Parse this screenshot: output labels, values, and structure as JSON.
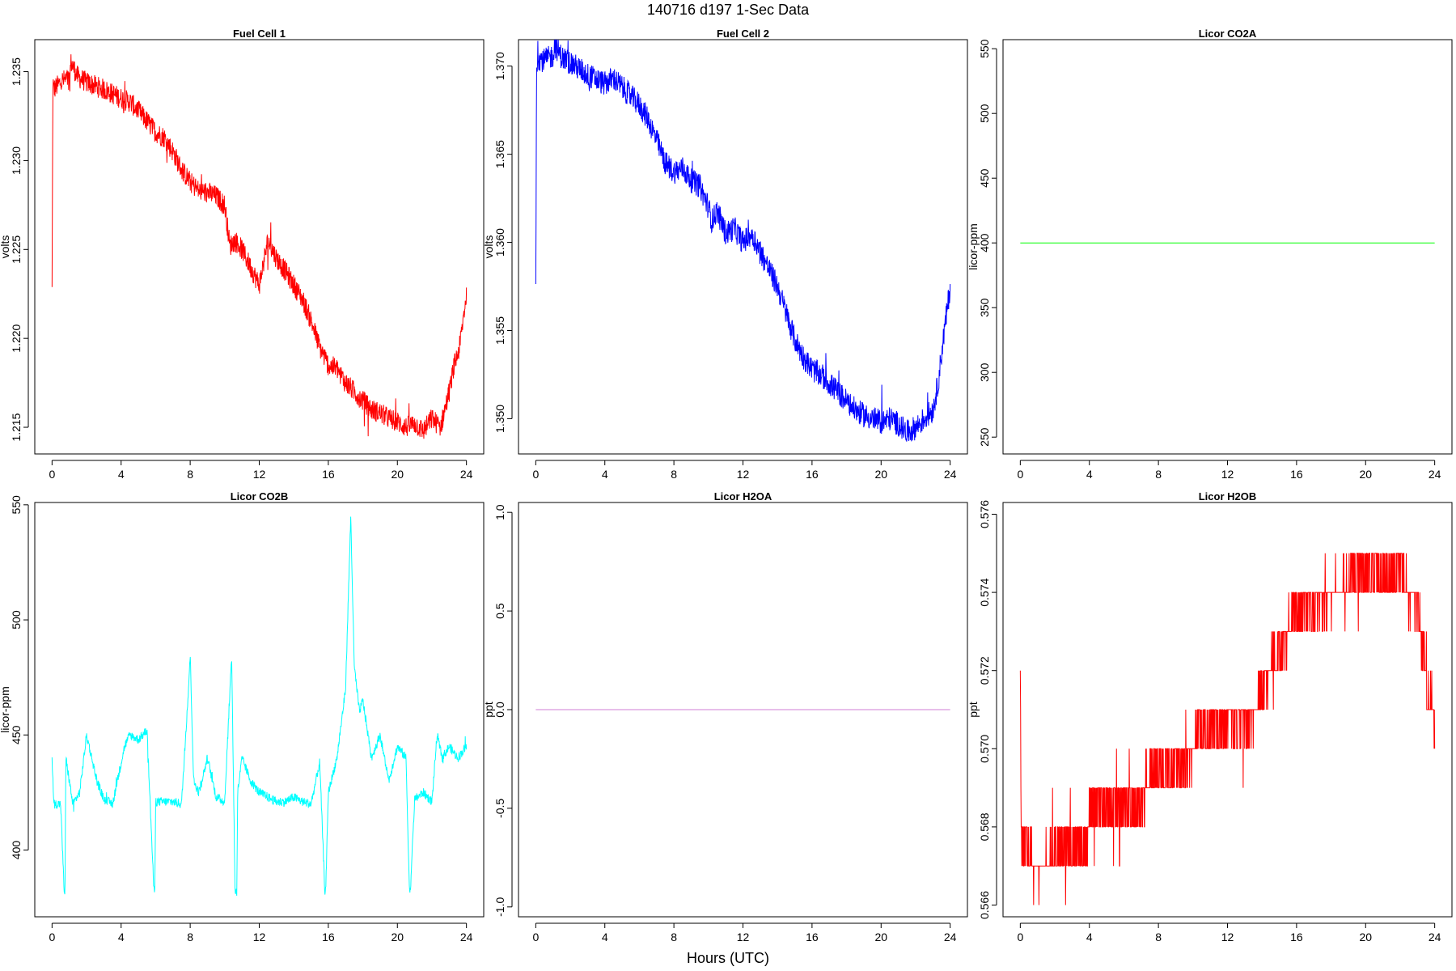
{
  "figure": {
    "title": "140716   d197   1-Sec Data",
    "xlabel": "Hours (UTC)"
  },
  "chart_data": [
    {
      "type": "line",
      "title": "Fuel Cell 1",
      "ylabel": "volts",
      "color": "#ff0000",
      "xlim": [
        -1,
        25
      ],
      "ylim": [
        1.2135,
        1.2368
      ],
      "xticks": [
        0,
        4,
        8,
        12,
        16,
        20,
        24
      ],
      "yticks": [
        "1.215",
        "1.220",
        "1.225",
        "1.230",
        "1.235"
      ],
      "noise": 0.0006,
      "x": [
        0,
        0.05,
        0.1,
        0.3,
        0.6,
        1.0,
        1.1,
        1.5,
        2,
        3,
        4,
        4.5,
        5,
        5.5,
        6,
        6.5,
        7,
        7.5,
        8,
        8.5,
        9,
        9.5,
        10,
        10.3,
        10.6,
        11,
        11.5,
        12,
        12.5,
        13,
        13.5,
        14,
        14.5,
        15,
        15.5,
        16,
        16.5,
        17,
        17.5,
        18,
        18.5,
        19,
        19.5,
        20,
        20.5,
        21,
        21.5,
        22,
        22.5,
        23,
        23.3,
        23.6,
        24
      ],
      "values": [
        1.2227,
        1.2345,
        1.234,
        1.2342,
        1.2345,
        1.2346,
        1.2355,
        1.2347,
        1.2344,
        1.234,
        1.2335,
        1.2333,
        1.2328,
        1.2322,
        1.2316,
        1.2313,
        1.2305,
        1.2295,
        1.2288,
        1.2283,
        1.2282,
        1.228,
        1.2275,
        1.2252,
        1.2255,
        1.225,
        1.224,
        1.223,
        1.2255,
        1.2245,
        1.2238,
        1.223,
        1.2222,
        1.221,
        1.2195,
        1.2185,
        1.2183,
        1.2175,
        1.217,
        1.2165,
        1.216,
        1.2158,
        1.2155,
        1.2153,
        1.215,
        1.2152,
        1.2148,
        1.2155,
        1.215,
        1.217,
        1.2185,
        1.2195,
        1.2225
      ]
    },
    {
      "type": "line",
      "title": "Fuel Cell 2",
      "ylabel": "volts",
      "color": "#0000ff",
      "xlim": [
        -1,
        25
      ],
      "ylim": [
        1.348,
        1.3715
      ],
      "xticks": [
        0,
        4,
        8,
        12,
        16,
        20,
        24
      ],
      "yticks": [
        "1.350",
        "1.355",
        "1.360",
        "1.365",
        "1.370"
      ],
      "noise": 0.0007,
      "x": [
        0,
        0.05,
        0.1,
        0.5,
        1.0,
        1.1,
        1.5,
        2,
        3,
        4,
        4.5,
        5,
        5.5,
        6,
        6.5,
        7,
        7.5,
        8,
        8.5,
        9,
        9.5,
        10,
        10.2,
        10.5,
        11,
        11.5,
        12,
        12.5,
        13,
        13.5,
        14,
        14.5,
        15,
        15.5,
        16,
        16.5,
        17,
        17.5,
        18,
        18.5,
        19,
        19.5,
        20,
        20.5,
        21,
        21.5,
        22,
        22.5,
        23,
        23.3,
        23.6,
        24
      ],
      "values": [
        1.3575,
        1.37,
        1.3705,
        1.3703,
        1.3706,
        1.3712,
        1.3705,
        1.3702,
        1.3695,
        1.369,
        1.3693,
        1.3688,
        1.3683,
        1.3678,
        1.367,
        1.3658,
        1.3645,
        1.364,
        1.3642,
        1.3635,
        1.3632,
        1.362,
        1.3612,
        1.3618,
        1.3605,
        1.3608,
        1.36,
        1.3605,
        1.3595,
        1.3585,
        1.3575,
        1.356,
        1.3545,
        1.3535,
        1.3528,
        1.3525,
        1.352,
        1.3515,
        1.351,
        1.3505,
        1.3502,
        1.35,
        1.3498,
        1.35,
        1.3497,
        1.3492,
        1.3495,
        1.35,
        1.3505,
        1.352,
        1.3545,
        1.3575
      ]
    },
    {
      "type": "line",
      "title": "Licor CO2A",
      "ylabel": "licor-ppm",
      "color": "#00ff00",
      "xlim": [
        -1,
        25
      ],
      "ylim": [
        237,
        557
      ],
      "xticks": [
        0,
        4,
        8,
        12,
        16,
        20,
        24
      ],
      "yticks": [
        "250",
        "300",
        "350",
        "400",
        "450",
        "500",
        "550"
      ],
      "noise": 0,
      "x": [
        0,
        24
      ],
      "values": [
        400,
        400
      ]
    },
    {
      "type": "line",
      "title": "Licor CO2B",
      "ylabel": "licor-ppm",
      "color": "#00ffff",
      "xlim": [
        -1,
        25
      ],
      "ylim": [
        371,
        551
      ],
      "xticks": [
        0,
        4,
        8,
        12,
        16,
        20,
        24
      ],
      "yticks": [
        "400",
        "450",
        "500",
        "550"
      ],
      "noise": 2,
      "x": [
        0,
        0.1,
        0.5,
        0.7,
        0.75,
        0.8,
        1.2,
        1.6,
        2.0,
        2.3,
        2.6,
        3.0,
        3.5,
        4.2,
        4.5,
        5.0,
        5.5,
        5.9,
        5.95,
        6.0,
        6.5,
        7.0,
        7.5,
        7.9,
        8.0,
        8.2,
        8.5,
        9.0,
        9.5,
        10.0,
        10.4,
        10.6,
        10.7,
        10.75,
        11.0,
        11.5,
        12.0,
        12.5,
        13.0,
        13.5,
        14.0,
        14.5,
        15.0,
        15.5,
        15.8,
        15.85,
        16.0,
        16.5,
        17.0,
        17.3,
        17.5,
        17.8,
        18.0,
        18.5,
        19.0,
        19.5,
        20.0,
        20.5,
        20.7,
        20.75,
        21.0,
        21.5,
        22.0,
        22.3,
        22.6,
        23.0,
        23.5,
        24.0
      ],
      "values": [
        440,
        420,
        420,
        382,
        382,
        440,
        420,
        425,
        450,
        440,
        430,
        422,
        420,
        445,
        450,
        448,
        452,
        382,
        382,
        421,
        421,
        421,
        420,
        470,
        485,
        430,
        425,
        440,
        423,
        421,
        485,
        382,
        382,
        425,
        440,
        430,
        425,
        423,
        421,
        421,
        423,
        421,
        420,
        438,
        382,
        382,
        425,
        440,
        470,
        545,
        480,
        460,
        465,
        440,
        450,
        430,
        445,
        440,
        382,
        382,
        422,
        425,
        421,
        450,
        440,
        445,
        440,
        445
      ]
    },
    {
      "type": "line",
      "title": "Licor H2OA",
      "ylabel": "ppt",
      "color": "#d07ed6",
      "xlim": [
        -1,
        25
      ],
      "ylim": [
        -1.05,
        1.05
      ],
      "xticks": [
        0,
        4,
        8,
        12,
        16,
        20,
        24
      ],
      "yticks": [
        "-1.0",
        "-0.5",
        "0.0",
        "0.5",
        "1.0"
      ],
      "noise": 0,
      "x": [
        0,
        24
      ],
      "values": [
        0,
        0
      ]
    },
    {
      "type": "line",
      "title": "Licor H2OB",
      "ylabel": "ppt",
      "color": "#ff0000",
      "xlim": [
        -1,
        25
      ],
      "ylim": [
        0.5657,
        0.5763
      ],
      "xticks": [
        0,
        4,
        8,
        12,
        16,
        20,
        24
      ],
      "yticks": [
        "0.566",
        "0.568",
        "0.570",
        "0.572",
        "0.574",
        "0.576"
      ],
      "noise": 0,
      "quantized": 0.001,
      "x": [
        0,
        0.05,
        0.3,
        1.0,
        2.0,
        3.0,
        3.9,
        4.0,
        5.0,
        6.0,
        7.0,
        7.5,
        8.5,
        9.5,
        10.5,
        11.0,
        12.0,
        12.5,
        13.5,
        14.0,
        15.0,
        15.5,
        16.0,
        16.5,
        17.5,
        18.5,
        19.5,
        20.0,
        21.0,
        22.0,
        23.0,
        23.3,
        23.6,
        24.0
      ],
      "values": [
        0.572,
        0.5675,
        0.5675,
        0.567,
        0.5673,
        0.5674,
        0.5674,
        0.5685,
        0.5685,
        0.5685,
        0.5685,
        0.5695,
        0.5695,
        0.5695,
        0.5705,
        0.5705,
        0.5705,
        0.5705,
        0.5707,
        0.5715,
        0.5725,
        0.573,
        0.5735,
        0.5735,
        0.5738,
        0.574,
        0.5745,
        0.5745,
        0.5745,
        0.5745,
        0.5735,
        0.5725,
        0.5715,
        0.5705
      ]
    }
  ]
}
